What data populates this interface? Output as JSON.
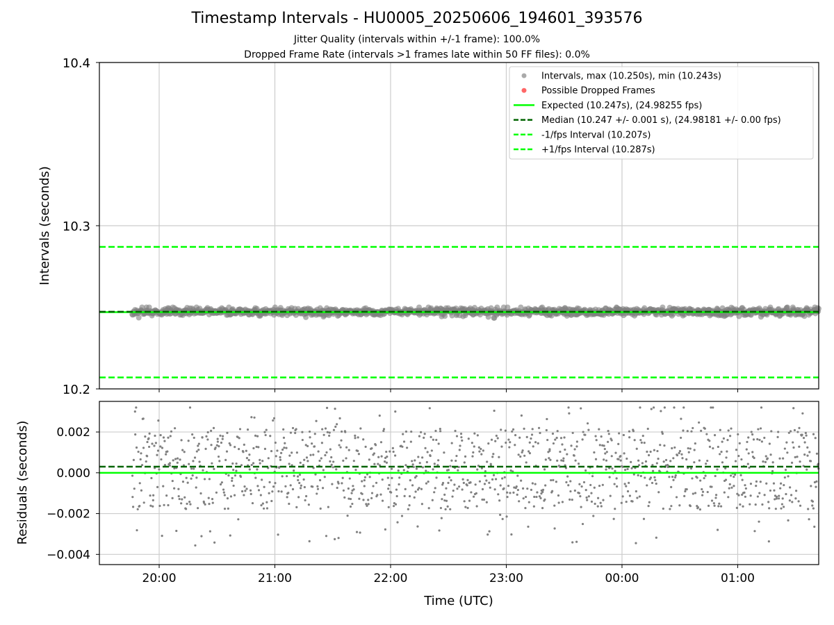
{
  "title": "Timestamp Intervals - HU0005_20250606_194601_393576",
  "subtitle_jitter": "Jitter Quality (intervals within +/-1 frame): 100.0%",
  "subtitle_dropped": "Dropped Frame Rate (intervals >1 frames late within 50 FF files): 0.0%",
  "colors": {
    "points": "#808080",
    "dropped": "#ff4d4d",
    "expected": "#00ff00",
    "median": "#006400",
    "fps_bounds": "#00ff00",
    "grid": "#cccccc"
  },
  "chart_data": [
    {
      "type": "scatter",
      "ylabel": "Intervals (seconds)",
      "ylim": [
        10.2,
        10.4
      ],
      "yticks": [
        "10.2",
        "10.3",
        "10.4"
      ],
      "xlim": [
        "19:29",
        "01:42"
      ],
      "grid": true,
      "legend_position": "top-right",
      "legend": [
        {
          "label": "Intervals, max (10.250s), min (10.243s)",
          "kind": "dot",
          "color": "#aaaaaa"
        },
        {
          "label": "Possible Dropped Frames",
          "kind": "dot",
          "color": "#ff6666"
        },
        {
          "label": "Expected (10.247s), (24.98255 fps)",
          "kind": "solid",
          "color": "#00ff00"
        },
        {
          "label": "Median (10.247 +/- 0.001 s), (24.98181 +/- 0.00 fps)",
          "kind": "dashed",
          "color": "#006400"
        },
        {
          "label": "-1/fps Interval (10.207s)",
          "kind": "dashed",
          "color": "#00ff00"
        },
        {
          "label": "+1/fps Interval (10.287s)",
          "kind": "dashed",
          "color": "#00ff00"
        }
      ],
      "reference_lines": {
        "expected": 10.247,
        "median": 10.2473,
        "minus_fps": 10.207,
        "plus_fps": 10.287
      },
      "series": [
        {
          "name": "Intervals",
          "time_range": [
            "19:46",
            "01:42"
          ],
          "center": 10.2473,
          "spread": 0.001,
          "min": 10.243,
          "max": 10.25,
          "count": 1250
        }
      ]
    },
    {
      "type": "scatter",
      "xlabel": "Time (UTC)",
      "ylabel": "Residuals (seconds)",
      "ylim": [
        -0.0045,
        0.0035
      ],
      "yticks": [
        "0.002",
        "0.000",
        "−0.002",
        "−0.004"
      ],
      "ytick_values": [
        0.002,
        0.0,
        -0.002,
        -0.004
      ],
      "xticks": [
        "20:00",
        "21:00",
        "22:00",
        "23:00",
        "00:00",
        "01:00"
      ],
      "grid": true,
      "reference_lines": {
        "zero": 0.0,
        "median": 0.0003
      },
      "series": [
        {
          "name": "Residuals",
          "time_range": [
            "19:46",
            "01:42"
          ],
          "center": 0.0,
          "spread": 0.0017,
          "min": -0.0041,
          "max": 0.0032,
          "count": 1250
        }
      ]
    }
  ]
}
